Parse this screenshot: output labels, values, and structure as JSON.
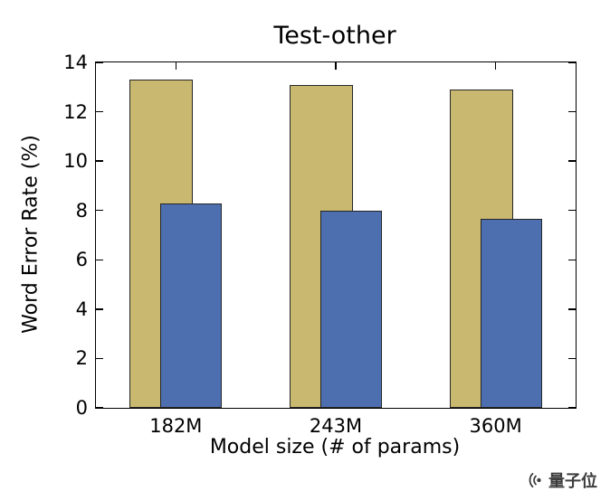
{
  "chart_data": {
    "type": "bar",
    "title": "Test-other",
    "xlabel": "Model size (# of params)",
    "ylabel": "Word Error Rate (%)",
    "categories": [
      "182M",
      "243M",
      "360M"
    ],
    "series": [
      {
        "name": "tan-bars",
        "color": "#c9b870",
        "values": [
          13.3,
          13.1,
          12.9
        ]
      },
      {
        "name": "blue-bars",
        "color": "#4d6fb0",
        "values": [
          8.3,
          8.0,
          7.65
        ]
      }
    ],
    "ylim": [
      0,
      14
    ],
    "yticks": [
      0,
      2,
      4,
      6,
      8,
      10,
      12,
      14
    ],
    "grid": false,
    "legend": "none",
    "bar_edge_color": "#262626"
  },
  "watermark": {
    "label": "量子位",
    "icon": "quantumbit-logo-icon",
    "color": "#3d3d3d"
  }
}
